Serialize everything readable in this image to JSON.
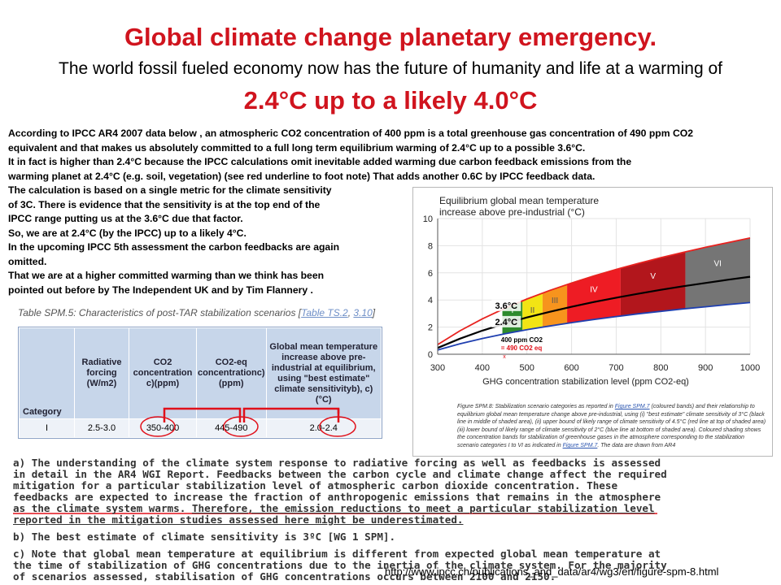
{
  "slide": {
    "title": "Global climate change planetary emergency.",
    "subtitle": "The world fossil fueled economy  now has  the future of humanity and life  at  a warming of",
    "headline": "2.4°C up to a likely 4.0°C"
  },
  "para1": [
    "According to IPCC AR4 2007  data below , an atmospheric CO2 concentration of 400 ppm is a total greenhouse gas concentration of 490   ppm CO2",
    "equivalent and that makes us absolutely committed  to  a  full long term equilibrium warming of 2.4°C  up to a possible 3.6°C.",
    " It in fact is higher than 2.4°C because the IPCC calculations omit  inevitable added warming due carbon feedback emissions from the",
    " warming planet at 2.4°C  (e.g.  soil, vegetation) (see red underline to  foot note) That adds another 0.6C  by IPCC feedback data."
  ],
  "para2": [
    "The calculation is based on a single metric for the climate sensitivity",
    "of 3C. There is evidence that the sensitivity is at the top end of the",
    "IPCC range putting us at the 3.6°C due that factor.",
    "So, we are at 2.4°C (by the IPCC)  up to a likely  4°C.",
    "In the upcoming IPCC 5th assessment the carbon feedbacks are again",
    "omitted.",
    "That we are at a higher committed warming than we think has been",
    "pointed out  before by The Independent UK and by  Tim Flannery ."
  ],
  "table": {
    "caption_prefix": "Table SPM.5: Characteristics of post-TAR stabilization scenarios [",
    "caption_link1": "Table TS.2",
    "caption_sep": ", ",
    "caption_link2": "3.10",
    "caption_suffix": "]",
    "col_category": "Category",
    "col_forcing": "Radiative forcing (W/m2)",
    "col_co2": "CO2 concentration c)(ppm)",
    "col_co2eq": "CO2-eq concentrationc) (ppm)",
    "col_temp": "Global mean temperature increase above pre-industrial at equilibrium, using \"best estimate\" climate sensitivityb), c) (°C)",
    "row": [
      "I",
      "2.5-3.0",
      "350-400",
      "445-490",
      "2.0-2.4"
    ]
  },
  "footnote": {
    "a_part1": "a) The understanding of the climate system response to radiative forcing as well as feedbacks is assessed in detail in the AR4 WGI Report. Feedbacks between the carbon cycle and climate change affect the required mitigation for a particular stabilization level of atmospheric carbon dioxide concentration. These feedbacks are expected to increase the fraction of anthropogenic emissions that remains in the atmosphere as the climate system warms.",
    "a_part2": "Therefore, the emission reductions to meet a particular stabilization level reported in the mitigation studies assessed here might be underestimated.",
    "b": "b) The best estimate of climate sensitivity is 3ºC [WG 1 SPM].",
    "c": "c) Note that global mean temperature at equilibrium is different from expected global mean temperature at the time of stabilization of GHG concentrations due to the inertia of the climate system. For the majority of scenarios assessed, stabilisation of GHG concentrations occurs between 2100 and 2150."
  },
  "url": "http://www.ipcc.ch/publications_and_data/ar4/wg3/en/figure-spm-8.html",
  "chart_caption": {
    "part1": "Figure SPM.8: Stabilization scenario categories as reported in ",
    "link1": "Figure SPM.7",
    "part2": " (coloured bands) and their relationship to equilibrium global mean temperature change above pre-industrial, using (i) \"best estimate\" climate sensitivity of 3°C (black line in middle of shaded area), (ii) upper bound of likely range of climate sensitivity of 4.5°C (red line at top of shaded area) (iii) lower bound of likely range of climate sensitivity of 2°C (blue line at bottom of shaded area). Coloured shading shows the concentration bands for stabilization of greenhouse gases in the atmosphere corresponding to the stabilization scenario categories I to VI as indicated in ",
    "link2": "Figure SPM.7",
    "part3": ". The data are drawn from AR4"
  },
  "chart_data": {
    "type": "area",
    "title": "Equilibrium global mean temperature increase above pre-industrial (°C)",
    "xlabel": "GHG concentration stabilization level (ppm CO2-eq)",
    "ylabel": "",
    "xlim": [
      300,
      1000
    ],
    "ylim": [
      0,
      10
    ],
    "x_ticks": [
      300,
      400,
      500,
      600,
      700,
      800,
      900,
      1000
    ],
    "y_ticks": [
      0,
      2,
      4,
      6,
      8,
      10
    ],
    "curves": [
      {
        "sensitivity": 4.5,
        "color": "#e8221f",
        "x": [
          300,
          350,
          400,
          450,
          500,
          550,
          600,
          650,
          700,
          750,
          800,
          850,
          900,
          950,
          1000
        ],
        "y": [
          0.71,
          1.73,
          2.61,
          3.38,
          4.07,
          4.69,
          5.25,
          5.77,
          6.25,
          6.7,
          7.12,
          7.51,
          7.88,
          8.23,
          8.57
        ]
      },
      {
        "sensitivity": 3,
        "color": "#000000",
        "x": [
          300,
          350,
          400,
          450,
          500,
          550,
          600,
          650,
          700,
          750,
          800,
          850,
          900,
          950,
          1000
        ],
        "y": [
          0.47,
          1.15,
          1.74,
          2.25,
          2.71,
          3.12,
          3.5,
          3.85,
          4.17,
          4.47,
          4.75,
          5.01,
          5.25,
          5.49,
          5.71
        ]
      },
      {
        "sensitivity": 2,
        "color": "#1f3fb0",
        "x": [
          300,
          350,
          400,
          450,
          500,
          550,
          600,
          650,
          700,
          750,
          800,
          850,
          900,
          950,
          1000
        ],
        "y": [
          0.32,
          0.77,
          1.16,
          1.5,
          1.81,
          2.08,
          2.33,
          2.56,
          2.78,
          2.98,
          3.16,
          3.34,
          3.5,
          3.66,
          3.81
        ]
      }
    ],
    "bands": [
      {
        "category": "I",
        "from": 445,
        "to": 490,
        "color": "#2e8b2e"
      },
      {
        "category": "II",
        "from": 490,
        "to": 535,
        "color": "#f2e414"
      },
      {
        "category": "III",
        "from": 535,
        "to": 590,
        "color": "#f7941d"
      },
      {
        "category": "IV",
        "from": 590,
        "to": 710,
        "color": "#ee1c24"
      },
      {
        "category": "V",
        "from": 710,
        "to": 855,
        "color": "#b2161c"
      },
      {
        "category": "VI",
        "from": 855,
        "to": 1000,
        "color": "#757575"
      }
    ],
    "annotations": [
      {
        "text": "3.6°C",
        "x": 450,
        "y": 3.6
      },
      {
        "text": "2.4°C",
        "x": 450,
        "y": 2.4
      },
      {
        "text": "400 ppm CO2",
        "x": 460,
        "y": 1.2
      },
      {
        "text": "=  490 CO2 eq",
        "x": 460,
        "y": 0.5
      },
      {
        "text": "x",
        "x": 450,
        "y": -0.2
      }
    ]
  }
}
